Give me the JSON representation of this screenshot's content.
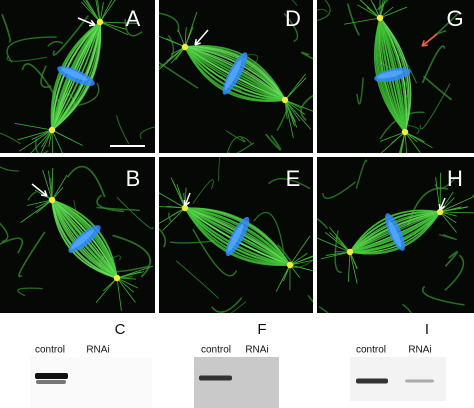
{
  "panels": [
    {
      "label": "A"
    },
    {
      "label": "D"
    },
    {
      "label": "G"
    },
    {
      "label": "B"
    },
    {
      "label": "E"
    },
    {
      "label": "H"
    }
  ],
  "blots": [
    {
      "label": "C",
      "lanes": [
        "control",
        "RNAi"
      ]
    },
    {
      "label": "F",
      "lanes": [
        "control",
        "RNAi"
      ]
    },
    {
      "label": "I",
      "lanes": [
        "control",
        "RNAi"
      ]
    }
  ]
}
